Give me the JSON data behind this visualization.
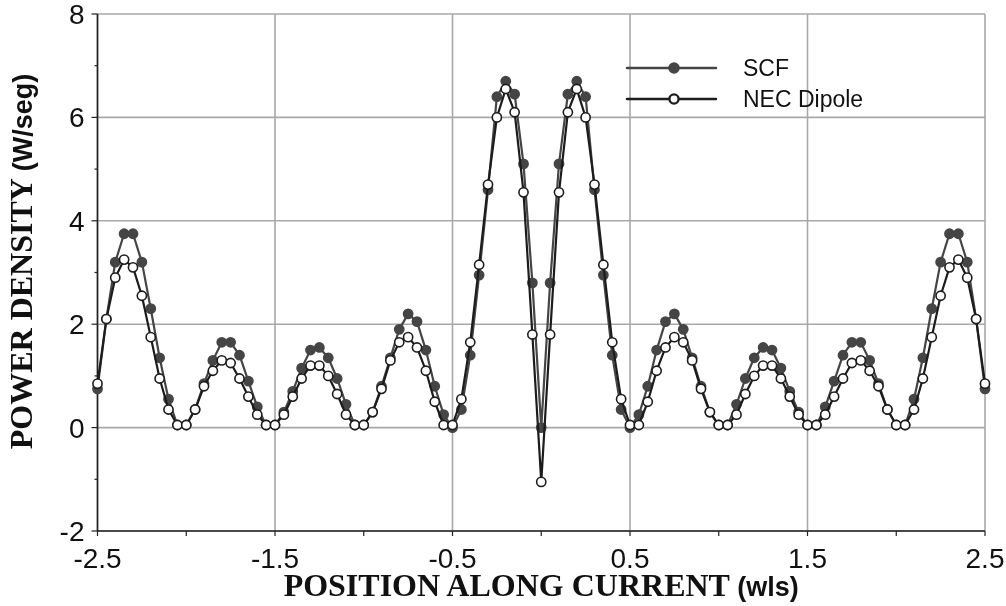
{
  "chart_data": {
    "type": "line",
    "xlabel": "POSITION ALONG CURRENT (wls)",
    "ylabel": "POWER DENSITY (W/seg)",
    "x": [
      -2.5,
      -2.45,
      -2.4,
      -2.35,
      -2.3,
      -2.25,
      -2.2,
      -2.15,
      -2.1,
      -2.05,
      -2,
      -1.95,
      -1.9,
      -1.85,
      -1.8,
      -1.75,
      -1.7,
      -1.65,
      -1.6,
      -1.55,
      -1.5,
      -1.45,
      -1.4,
      -1.35,
      -1.3,
      -1.25,
      -1.2,
      -1.15,
      -1.1,
      -1.05,
      -1,
      -0.95,
      -0.9,
      -0.85,
      -0.8,
      -0.75,
      -0.7,
      -0.65,
      -0.6,
      -0.55,
      -0.5,
      -0.45,
      -0.4,
      -0.35,
      -0.3,
      -0.25,
      -0.2,
      -0.15,
      -0.1,
      -0.05,
      0,
      0.05,
      0.1,
      0.15,
      0.2,
      0.25,
      0.3,
      0.35,
      0.4,
      0.45,
      0.5,
      0.55,
      0.6,
      0.65,
      0.7,
      0.75,
      0.8,
      0.85,
      0.9,
      0.95,
      1,
      1.05,
      1.1,
      1.15,
      1.2,
      1.25,
      1.3,
      1.35,
      1.4,
      1.45,
      1.5,
      1.55,
      1.6,
      1.65,
      1.7,
      1.75,
      1.8,
      1.85,
      1.9,
      1.95,
      2,
      2.05,
      2.1,
      2.15,
      2.2,
      2.25,
      2.3,
      2.35,
      2.4,
      2.45,
      2.5
    ],
    "series": [
      {
        "name": "SCF",
        "color": "#454545",
        "values": [
          0.75,
          2.1,
          3.2,
          3.75,
          3.75,
          3.2,
          2.3,
          1.35,
          0.55,
          0.05,
          0.05,
          0.35,
          0.85,
          1.3,
          1.65,
          1.65,
          1.4,
          0.9,
          0.4,
          0.05,
          0.05,
          0.3,
          0.7,
          1.15,
          1.5,
          1.55,
          1.35,
          0.95,
          0.45,
          0.05,
          0.05,
          0.3,
          0.8,
          1.35,
          1.9,
          2.2,
          2.05,
          1.5,
          0.8,
          0.25,
          0,
          0.35,
          1.4,
          2.95,
          4.6,
          6.4,
          6.7,
          6.45,
          5.1,
          2.8,
          0,
          2.8,
          5.1,
          6.45,
          6.7,
          6.4,
          4.6,
          2.95,
          1.4,
          0.35,
          0,
          0.25,
          0.8,
          1.5,
          2.05,
          2.2,
          1.9,
          1.35,
          0.8,
          0.3,
          0.05,
          0.05,
          0.45,
          0.95,
          1.35,
          1.55,
          1.5,
          1.15,
          0.7,
          0.3,
          0.05,
          0.05,
          0.4,
          0.9,
          1.4,
          1.65,
          1.65,
          1.3,
          0.85,
          0.35,
          0.05,
          0.05,
          0.55,
          1.35,
          2.3,
          3.2,
          3.75,
          3.75,
          3.2,
          2.1,
          0.75
        ]
      },
      {
        "name": "NEC Dipole",
        "color": "#1c1c1c",
        "values": [
          0.85,
          2.1,
          2.9,
          3.25,
          3.1,
          2.55,
          1.75,
          0.95,
          0.35,
          0.05,
          0.05,
          0.35,
          0.8,
          1.1,
          1.3,
          1.25,
          0.95,
          0.6,
          0.25,
          0.05,
          0.05,
          0.25,
          0.6,
          0.95,
          1.2,
          1.2,
          1.0,
          0.65,
          0.25,
          0.05,
          0.05,
          0.3,
          0.75,
          1.3,
          1.65,
          1.75,
          1.55,
          1.1,
          0.5,
          0.05,
          0.05,
          0.55,
          1.65,
          3.15,
          4.7,
          6.0,
          6.55,
          6.1,
          4.55,
          1.8,
          -1.05,
          1.8,
          4.55,
          6.1,
          6.55,
          6.0,
          4.7,
          3.15,
          1.65,
          0.55,
          0.05,
          0.05,
          0.5,
          1.1,
          1.55,
          1.75,
          1.65,
          1.3,
          0.75,
          0.3,
          0.05,
          0.05,
          0.25,
          0.65,
          1.0,
          1.2,
          1.2,
          0.95,
          0.6,
          0.25,
          0.05,
          0.05,
          0.25,
          0.6,
          0.95,
          1.25,
          1.3,
          1.1,
          0.8,
          0.35,
          0.05,
          0.05,
          0.35,
          0.95,
          1.75,
          2.55,
          3.1,
          3.25,
          2.9,
          2.1,
          0.85
        ]
      }
    ],
    "xlim": [
      -2.5,
      2.5
    ],
    "ylim": [
      -2,
      8
    ],
    "xticks": [
      -2.5,
      {
        "value": -2,
        "label": null
      },
      -1.5,
      {
        "value": -1,
        "label": null
      },
      -0.5,
      {
        "value": 0,
        "label": null
      },
      0.5,
      {
        "value": 1,
        "label": null
      },
      1.5,
      {
        "value": 2,
        "label": null
      },
      2.5
    ],
    "yticks": [
      -2,
      {
        "value": -1,
        "label": null
      },
      0,
      {
        "value": 1,
        "label": null
      },
      2,
      {
        "value": 3,
        "label": null
      },
      4,
      {
        "value": 5,
        "label": null
      },
      6,
      {
        "value": 7,
        "label": null
      },
      8
    ],
    "grid": true,
    "legend": "top right",
    "marker": "circle",
    "line_style": "solid"
  }
}
